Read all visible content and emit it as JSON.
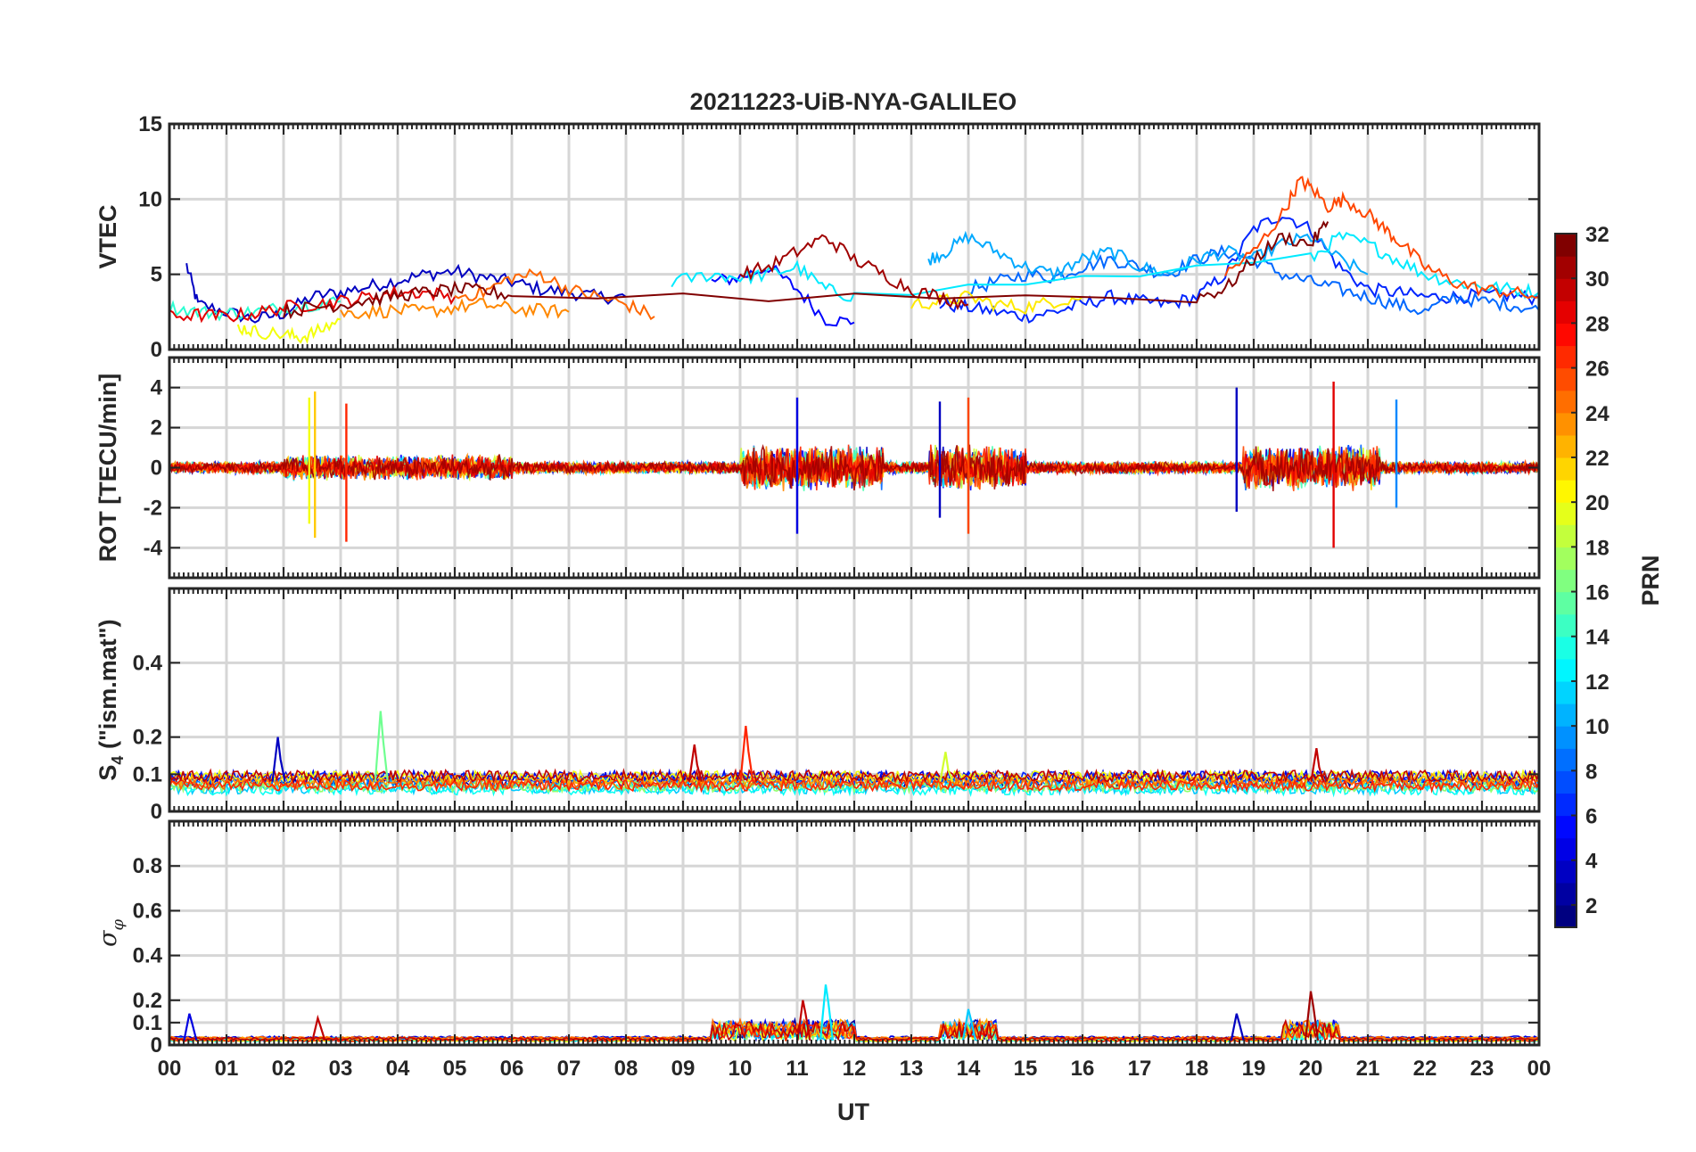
{
  "chart_data": {
    "type": "line",
    "title": "20211223-UiB-NYA-GALILEO",
    "x_axis": {
      "label": "UT",
      "ticks": [
        "00",
        "01",
        "02",
        "03",
        "04",
        "05",
        "06",
        "07",
        "08",
        "09",
        "10",
        "11",
        "12",
        "13",
        "14",
        "15",
        "16",
        "17",
        "18",
        "19",
        "20",
        "21",
        "22",
        "23",
        "00"
      ],
      "range_hours": [
        0,
        24
      ]
    },
    "colorbar": {
      "label": "PRN",
      "range": [
        1,
        32
      ],
      "ticks": [
        2,
        4,
        6,
        8,
        10,
        12,
        14,
        16,
        18,
        20,
        22,
        24,
        26,
        28,
        30,
        32
      ],
      "colormap": "jet"
    },
    "panels": [
      {
        "name": "vtec",
        "ylabel": "VTEC",
        "ylim": [
          0,
          15
        ],
        "yticks": [
          0,
          5,
          10,
          15
        ],
        "grid": true,
        "series": [
          {
            "prn": 3,
            "x": [
              0.3,
              0.5,
              1,
              1.5,
              2,
              2.5,
              3,
              3.5,
              4,
              4.5,
              5,
              5.5,
              6,
              6.5,
              7,
              7.5,
              8
            ],
            "y": [
              5.6,
              3,
              2.5,
              2,
              2.4,
              3.5,
              3.8,
              4.2,
              4.6,
              5,
              5.2,
              4.8,
              4.5,
              4,
              3.8,
              3.5,
              3.5
            ]
          },
          {
            "prn": 5,
            "x": [
              9.5,
              10,
              10.5,
              11,
              11.5,
              12
            ],
            "y": [
              4.5,
              4.8,
              5.5,
              4,
              2,
              1.8
            ]
          },
          {
            "prn": 6,
            "x": [
              13.5,
              14,
              14.5,
              15,
              15.5,
              16,
              16.5,
              17,
              17.5,
              18,
              18.5,
              19,
              19.5,
              20,
              20.5,
              21,
              21.5,
              22,
              22.5,
              23,
              23.5,
              24
            ],
            "y": [
              3,
              2.8,
              2.5,
              2.2,
              2.5,
              3,
              3.5,
              3.2,
              3,
              3.5,
              5,
              8,
              9,
              8,
              5.5,
              4,
              3.8,
              3.5,
              3.5,
              3.6,
              3.6,
              3.4
            ]
          },
          {
            "prn": 8,
            "x": [
              14,
              14.5,
              15,
              15.5,
              16,
              16.5,
              17,
              17.5,
              18,
              18.5,
              19,
              19.5,
              20,
              20.5,
              21,
              21.5,
              22,
              22.5,
              23,
              23.5,
              24
            ],
            "y": [
              4,
              4.5,
              5,
              4.8,
              5.5,
              6,
              5.5,
              5,
              6,
              6.5,
              6,
              5,
              4.5,
              4,
              3.5,
              3,
              2.5,
              3.5,
              3.2,
              3,
              2.6
            ]
          },
          {
            "prn": 10,
            "x": [
              13.3,
              13.6,
              14,
              14.5,
              15,
              15.5,
              16,
              16.5,
              17,
              17.5,
              18,
              18.5,
              19,
              19.5,
              20,
              20.5,
              21
            ],
            "y": [
              6,
              6.5,
              7.5,
              6.5,
              5.5,
              5,
              6,
              6.5,
              5.5,
              5,
              6,
              6.5,
              6,
              7,
              7.5,
              6,
              5
            ]
          },
          {
            "prn": 12,
            "x": [
              8.8,
              9.5,
              10,
              10.5,
              11,
              11.5,
              12,
              20,
              20.5,
              21,
              21.5,
              22,
              22.5,
              23,
              23.5,
              24
            ],
            "y": [
              4.5,
              5,
              4.8,
              5,
              5.5,
              4,
              3.5,
              6,
              7.5,
              7,
              6,
              5,
              4.5,
              4.2,
              4,
              3.8
            ]
          },
          {
            "prn": 14,
            "x": [
              0,
              0.5,
              1,
              1.5,
              2,
              2.5,
              3
            ],
            "y": [
              2.8,
              2.5,
              2.4,
              2.5,
              2.8,
              3,
              3.2
            ]
          },
          {
            "prn": 20,
            "x": [
              1.2,
              1.5,
              2,
              2.3,
              2.6,
              3
            ],
            "y": [
              1.5,
              1.2,
              1,
              0.8,
              1.2,
              2
            ]
          },
          {
            "prn": 21,
            "x": [
              13,
              13.5,
              14,
              14.5,
              15,
              15.5,
              16
            ],
            "y": [
              3,
              3.2,
              3.5,
              3,
              2.8,
              3.2,
              3.5
            ]
          },
          {
            "prn": 24,
            "x": [
              3,
              3.5,
              4,
              4.5,
              5,
              5.5,
              6,
              6.5,
              7
            ],
            "y": [
              2.4,
              2.5,
              2.6,
              2.5,
              2.8,
              3,
              2.7,
              2.6,
              2.5
            ]
          },
          {
            "prn": 25,
            "x": [
              5,
              5.5,
              6,
              6.5,
              7,
              7.5,
              8,
              8.5
            ],
            "y": [
              3.5,
              3.8,
              4.8,
              5,
              4,
              3.5,
              3,
              2.2
            ]
          },
          {
            "prn": 26,
            "x": [
              18.5,
              19,
              19.5,
              19.8,
              20,
              20.3,
              20.6,
              21,
              21.3,
              21.6,
              22,
              22.5,
              23,
              23.5,
              24
            ],
            "y": [
              5,
              6.5,
              9,
              11.2,
              10.8,
              9.5,
              10,
              9,
              8,
              7,
              5.5,
              4.5,
              4,
              3.8,
              3.5
            ]
          },
          {
            "prn": 29,
            "x": [
              0,
              0.5,
              1,
              1.5,
              2,
              2.5,
              3,
              3.5,
              4,
              4.5,
              5
            ],
            "y": [
              2.2,
              2.3,
              2.2,
              2.4,
              2.8,
              3,
              3.2,
              3.5,
              3.8,
              3.8,
              3.5
            ]
          },
          {
            "prn": 31,
            "x": [
              10,
              10.5,
              11,
              11.5,
              12,
              12.5,
              13,
              13.5,
              14
            ],
            "y": [
              5,
              5.5,
              6.5,
              7.5,
              6,
              5,
              4,
              3.5,
              3
            ]
          },
          {
            "prn": 32,
            "x": [
              2,
              2.5,
              3,
              3.5,
              4,
              4.5,
              5,
              5.5,
              6,
              18,
              18.5,
              19,
              19.5,
              20,
              20.3
            ],
            "y": [
              2.5,
              2.8,
              3,
              3.3,
              3.6,
              3.8,
              4,
              3.9,
              3.6,
              3.5,
              4,
              6,
              7.5,
              7,
              8.5
            ]
          }
        ]
      },
      {
        "name": "rot",
        "ylabel": "ROT [TECU/min]",
        "ylim": [
          -5.5,
          5.5
        ],
        "yticks": [
          -4,
          -2,
          0,
          2,
          4
        ],
        "grid": true,
        "spikes": [
          {
            "prn": 20,
            "x": 2.45,
            "y_min": -2.8,
            "y_max": 3.5
          },
          {
            "prn": 22,
            "x": 2.55,
            "y_min": -3.5,
            "y_max": 3.8
          },
          {
            "prn": 27,
            "x": 3.1,
            "y_min": -3.7,
            "y_max": 3.2
          },
          {
            "prn": 4,
            "x": 11.0,
            "y_min": -3.3,
            "y_max": 3.5
          },
          {
            "prn": 3,
            "x": 13.5,
            "y_min": -2.5,
            "y_max": 3.3
          },
          {
            "prn": 26,
            "x": 14.0,
            "y_min": -3.3,
            "y_max": 3.5
          },
          {
            "prn": 3,
            "x": 18.7,
            "y_min": -2.2,
            "y_max": 4.0
          },
          {
            "prn": 29,
            "x": 20.4,
            "y_min": -4.0,
            "y_max": 4.3
          },
          {
            "prn": 9,
            "x": 21.5,
            "y_min": -2.0,
            "y_max": 3.4
          }
        ]
      },
      {
        "name": "s4",
        "ylabel": "S4 (\"ism.mat\")",
        "ylabel_main": "S",
        "ylabel_sub": "4",
        "ylabel_rest": " (\"ism.mat\")",
        "ylim": [
          0,
          0.6
        ],
        "yticks": [
          0,
          0.1,
          0.2,
          0.4
        ],
        "grid": true,
        "peaks": [
          {
            "prn": 3,
            "x": 1.9,
            "y": 0.2
          },
          {
            "prn": 16,
            "x": 3.7,
            "y": 0.27
          },
          {
            "prn": 30,
            "x": 9.2,
            "y": 0.18
          },
          {
            "prn": 27,
            "x": 10.1,
            "y": 0.23
          },
          {
            "prn": 19,
            "x": 13.6,
            "y": 0.16
          },
          {
            "prn": 30,
            "x": 20.1,
            "y": 0.17
          }
        ]
      },
      {
        "name": "sigma",
        "ylabel": "σφ",
        "ylabel_main": "σ",
        "ylabel_sub": "φ",
        "ylim": [
          0,
          1
        ],
        "yticks": [
          0,
          0.1,
          0.2,
          0.4,
          0.6,
          0.8
        ],
        "grid": true,
        "peaks": [
          {
            "prn": 4,
            "x": 0.35,
            "y": 0.14
          },
          {
            "prn": 30,
            "x": 2.6,
            "y": 0.12
          },
          {
            "prn": 12,
            "x": 11.5,
            "y": 0.27
          },
          {
            "prn": 30,
            "x": 11.1,
            "y": 0.2
          },
          {
            "prn": 11,
            "x": 14.0,
            "y": 0.16
          },
          {
            "prn": 3,
            "x": 18.7,
            "y": 0.14
          },
          {
            "prn": 31,
            "x": 20.0,
            "y": 0.24
          }
        ]
      }
    ]
  }
}
